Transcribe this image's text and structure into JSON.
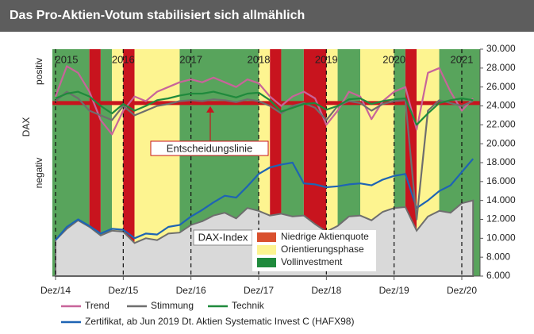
{
  "chart_data": {
    "type": "line",
    "title": "Das Pro-Aktien-Votum stabilisiert sich allmählich",
    "y_label": "DAX",
    "side_labels": [
      "positiv",
      "negativ"
    ],
    "x": [
      "Dez/14",
      "Feb/15",
      "Apr/15",
      "Jun/15",
      "Aug/15",
      "Okt/15",
      "Dez/15",
      "Feb/16",
      "Apr/16",
      "Jun/16",
      "Aug/16",
      "Okt/16",
      "Dez/16",
      "Feb/17",
      "Apr/17",
      "Jun/17",
      "Aug/17",
      "Okt/17",
      "Dez/17",
      "Feb/18",
      "Apr/18",
      "Jun/18",
      "Aug/18",
      "Okt/18",
      "Dez/18",
      "Feb/19",
      "Apr/19",
      "Jun/19",
      "Aug/19",
      "Okt/19",
      "Dez/19",
      "Feb/20",
      "Apr/20",
      "Jun/20",
      "Aug/20",
      "Okt/20",
      "Dez/20",
      "Feb/21"
    ],
    "xticks": [
      "Dez/14",
      "Dez/15",
      "Dez/16",
      "Dez/17",
      "Dez/18",
      "Dez/19",
      "Dez/20"
    ],
    "year_labels": [
      "2015",
      "2016",
      "2017",
      "2018",
      "2019",
      "2020",
      "2021"
    ],
    "ylim": [
      6000,
      30000
    ],
    "yticks": [
      {
        "value": 6000,
        "label": "6.000"
      },
      {
        "value": 8000,
        "label": "8.000"
      },
      {
        "value": 10000,
        "label": "10.000"
      },
      {
        "value": 12000,
        "label": "12.000"
      },
      {
        "value": 14000,
        "label": "14.000"
      },
      {
        "value": 16000,
        "label": "16.000"
      },
      {
        "value": 18000,
        "label": "18.000"
      },
      {
        "value": 20000,
        "label": "20.000"
      },
      {
        "value": 22000,
        "label": "22.000"
      },
      {
        "value": 24000,
        "label": "24.000"
      },
      {
        "value": 26000,
        "label": "26.000"
      },
      {
        "value": 28000,
        "label": "28.000"
      },
      {
        "value": 30000,
        "label": "30.000"
      }
    ],
    "decision_line": {
      "label": "Entscheidungslinie",
      "value": 24300,
      "color": "#c8141e"
    },
    "phase_legend": [
      {
        "name": "Niedrige Aktienquote",
        "color": "#c8141e",
        "legend_color": "#d9502e"
      },
      {
        "name": "Orientierungsphase",
        "color": "#fdf490"
      },
      {
        "name": "Vollinvestment",
        "color": "#58a45c",
        "legend_color": "#1f8a3c"
      }
    ],
    "phases": [
      {
        "start": "Dez/14",
        "end": "Jun/15",
        "phase": "Vollinvestment"
      },
      {
        "start": "Jun/15",
        "end": "Aug/15",
        "phase": "Niedrige Aktienquote"
      },
      {
        "start": "Aug/15",
        "end": "Okt/15",
        "phase": "Vollinvestment"
      },
      {
        "start": "Okt/15",
        "end": "Dez/15",
        "phase": "Orientierungsphase"
      },
      {
        "start": "Dez/15",
        "end": "Feb/16",
        "phase": "Niedrige Aktienquote"
      },
      {
        "start": "Feb/16",
        "end": "Okt/16",
        "phase": "Orientierungsphase"
      },
      {
        "start": "Okt/16",
        "end": "Dez/17",
        "phase": "Vollinvestment"
      },
      {
        "start": "Dez/17",
        "end": "Feb/18",
        "phase": "Orientierungsphase"
      },
      {
        "start": "Feb/18",
        "end": "Apr/18",
        "phase": "Niedrige Aktienquote"
      },
      {
        "start": "Apr/18",
        "end": "Aug/18",
        "phase": "Vollinvestment"
      },
      {
        "start": "Aug/18",
        "end": "Dez/18",
        "phase": "Niedrige Aktienquote"
      },
      {
        "start": "Dez/18",
        "end": "Feb/19",
        "phase": "Orientierungsphase"
      },
      {
        "start": "Feb/19",
        "end": "Jun/19",
        "phase": "Vollinvestment"
      },
      {
        "start": "Jun/19",
        "end": "Dez/19",
        "phase": "Orientierungsphase"
      },
      {
        "start": "Dez/19",
        "end": "Feb/20",
        "phase": "Vollinvestment"
      },
      {
        "start": "Feb/20",
        "end": "Apr/20",
        "phase": "Niedrige Aktienquote"
      },
      {
        "start": "Apr/20",
        "end": "Aug/20",
        "phase": "Orientierungsphase"
      },
      {
        "start": "Aug/20",
        "end": "Feb/21",
        "phase": "Vollinvestment"
      }
    ],
    "series": [
      {
        "name": "DAX-Index",
        "color": "#6e6e6e",
        "fill": "#d9d9d9",
        "style": "area",
        "values": [
          9800,
          11000,
          11900,
          11200,
          10300,
          10800,
          10700,
          9500,
          10000,
          9800,
          10500,
          10600,
          11400,
          11800,
          12400,
          12700,
          12100,
          13200,
          12900,
          12400,
          12600,
          12300,
          12400,
          11500,
          10700,
          11300,
          12300,
          12400,
          11900,
          12800,
          13200,
          13300,
          10800,
          12300,
          12900,
          12700,
          13700,
          14000
        ]
      },
      {
        "name": "Zertifikat, ab Jun 2019 Dt. Aktien Systematic Invest C (HAFX98)",
        "color": "#1e64b4",
        "values": [
          9800,
          11200,
          12000,
          11300,
          10500,
          11000,
          10900,
          10000,
          10500,
          10400,
          11200,
          11400,
          12300,
          13000,
          13800,
          14500,
          14300,
          15500,
          16800,
          17500,
          17800,
          18000,
          15800,
          15700,
          15400,
          15500,
          15700,
          15800,
          15600,
          16200,
          16600,
          16800,
          13200,
          14000,
          15000,
          15600,
          17000,
          18400
        ]
      },
      {
        "name": "Trend",
        "color": "#c8649a",
        "values": [
          25000,
          28200,
          27500,
          25500,
          22500,
          21000,
          23500,
          25000,
          24500,
          25500,
          26000,
          26500,
          26800,
          26500,
          27000,
          26500,
          26000,
          26800,
          26400,
          25000,
          24000,
          25000,
          25500,
          24800,
          22000,
          23500,
          25500,
          25000,
          22600,
          24500,
          25500,
          26000,
          21500,
          27500,
          28000,
          25500,
          23500,
          24800
        ]
      },
      {
        "name": "Stimmung",
        "color": "#6e6e6e",
        "values": [
          24500,
          25500,
          24800,
          23500,
          23000,
          22500,
          24000,
          23000,
          23500,
          24000,
          24200,
          24500,
          24600,
          24500,
          24700,
          24600,
          24400,
          24700,
          24500,
          24000,
          23200,
          24000,
          24300,
          23800,
          22500,
          24000,
          24500,
          24300,
          23500,
          24200,
          24500,
          24600,
          12000,
          23500,
          24600,
          24300,
          24000,
          24500
        ]
      },
      {
        "name": "Technik",
        "color": "#1f8a3c",
        "values": [
          24800,
          25300,
          25500,
          25000,
          24000,
          23200,
          24200,
          23500,
          24000,
          24600,
          24800,
          25100,
          25300,
          25300,
          25500,
          25200,
          24900,
          25300,
          25400,
          24600,
          23400,
          23800,
          24200,
          24300,
          23600,
          24000,
          24700,
          24800,
          24200,
          24500,
          24700,
          24800,
          22000,
          23200,
          24300,
          24600,
          24800,
          24600
        ]
      }
    ]
  }
}
